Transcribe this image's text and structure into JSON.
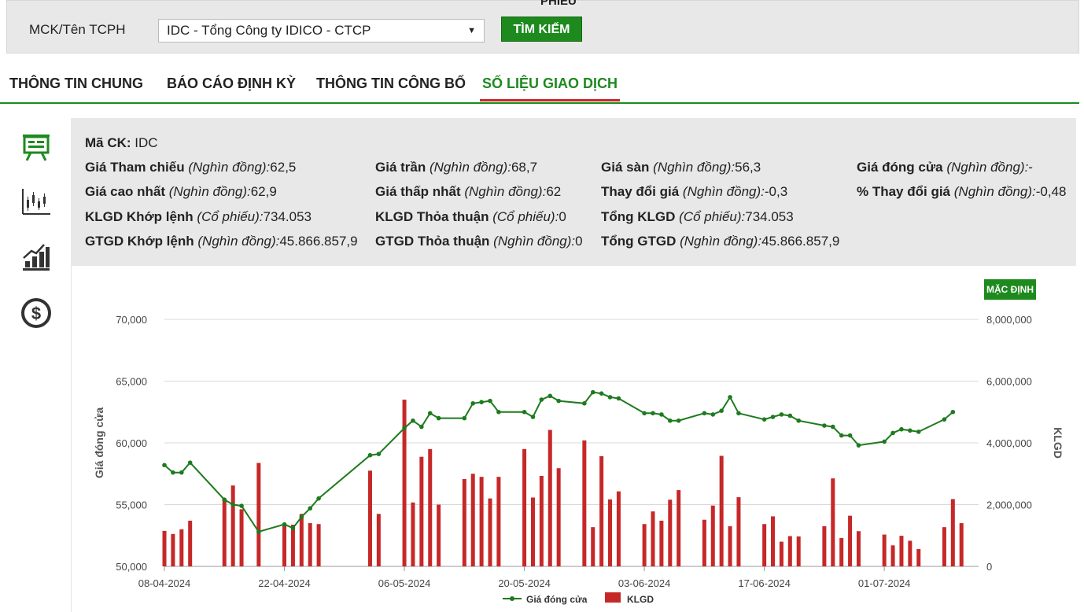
{
  "search": {
    "partial_title": "PHIẾU",
    "label": "MCK/Tên TCPH",
    "selected": "IDC - Tổng Công ty IDICO - CTCP",
    "button": "TÌM KIẾM"
  },
  "tabs": [
    {
      "label": "THÔNG TIN CHUNG"
    },
    {
      "label": "BÁO CÁO ĐỊNH KỲ"
    },
    {
      "label": "THÔNG TIN CÔNG BỐ"
    },
    {
      "label": "SỐ LIỆU GIAO DỊCH"
    }
  ],
  "side_icons": [
    "presentation-chart-icon",
    "candlestick-chart-icon",
    "growth-chart-icon",
    "dollar-coin-icon"
  ],
  "info": {
    "ma_ck": {
      "label": "Mã CK:",
      "value": "IDC"
    },
    "items": [
      {
        "label": "Giá Tham chiếu",
        "unit": "(Nghìn đồng):",
        "value": "62,5"
      },
      {
        "label": "Giá trần",
        "unit": "(Nghìn đồng):",
        "value": "68,7"
      },
      {
        "label": "Giá sàn",
        "unit": "(Nghìn đồng):",
        "value": "56,3"
      },
      {
        "label": "Giá đóng cửa",
        "unit": "(Nghìn đồng):",
        "value": "-"
      },
      {
        "label": "Giá cao nhất",
        "unit": "(Nghìn đồng):",
        "value": "62,9"
      },
      {
        "label": "Giá thấp nhất",
        "unit": "(Nghìn đồng):",
        "value": "62"
      },
      {
        "label": "Thay đổi giá",
        "unit": "(Nghìn đồng):",
        "value": "-0,3"
      },
      {
        "label": "% Thay đổi giá",
        "unit": "(Nghìn đồng):",
        "value": "-0,48"
      },
      {
        "label": "KLGD Khớp lệnh",
        "unit": "(Cổ phiếu):",
        "value": "734.053"
      },
      {
        "label": "KLGD Thỏa thuận",
        "unit": "(Cổ phiếu):",
        "value": "0"
      },
      {
        "label": "Tổng KLGD",
        "unit": "(Cổ phiếu):",
        "value": "734.053"
      },
      {
        "label": "GTGD Khớp lệnh",
        "unit": "(Nghìn đồng):",
        "value": "45.866.857,9"
      },
      {
        "label": "GTGD Thỏa thuận",
        "unit": "(Nghìn đồng):",
        "value": "0"
      },
      {
        "label": "Tổng GTGD",
        "unit": "(Nghìn đồng):",
        "value": "45.866.857,9"
      }
    ]
  },
  "chart": {
    "default_button": "MẶC ĐỊNH"
  },
  "colors": {
    "accent": "#1e8a1e",
    "bar": "#c62828",
    "line": "#1e7a1e",
    "tab_underline": "#c62828"
  },
  "chart_data": {
    "type": "bar+line",
    "xlabel": "",
    "ylabel": "Giá đóng cửa",
    "y2label": "KLGD",
    "ylim": [
      50000,
      70000
    ],
    "y2lim": [
      0,
      8000000
    ],
    "yticks": [
      "50,000",
      "55,000",
      "60,000",
      "65,000",
      "70,000"
    ],
    "y2ticks": [
      "0",
      "2,000,000",
      "4,000,000",
      "6,000,000",
      "8,000,000"
    ],
    "xticks": [
      "08-04-2024",
      "22-04-2024",
      "06-05-2024",
      "20-05-2024",
      "03-06-2024",
      "17-06-2024",
      "01-07-2024"
    ],
    "x_start": "2024-04-08",
    "x_end": "2024-07-12",
    "series": [
      {
        "name": "Giá đóng cửa",
        "type": "line",
        "points": [
          [
            "2024-04-08",
            58200
          ],
          [
            "2024-04-09",
            57600
          ],
          [
            "2024-04-10",
            57600
          ],
          [
            "2024-04-11",
            58400
          ],
          [
            "2024-04-15",
            55400
          ],
          [
            "2024-04-16",
            55000
          ],
          [
            "2024-04-17",
            54900
          ],
          [
            "2024-04-19",
            52800
          ],
          [
            "2024-04-22",
            53400
          ],
          [
            "2024-04-23",
            53100
          ],
          [
            "2024-04-24",
            54000
          ],
          [
            "2024-04-25",
            54700
          ],
          [
            "2024-04-26",
            55500
          ],
          [
            "2024-05-02",
            59000
          ],
          [
            "2024-05-03",
            59100
          ],
          [
            "2024-05-06",
            61200
          ],
          [
            "2024-05-07",
            61800
          ],
          [
            "2024-05-08",
            61300
          ],
          [
            "2024-05-09",
            62400
          ],
          [
            "2024-05-10",
            62000
          ],
          [
            "2024-05-13",
            62000
          ],
          [
            "2024-05-14",
            63200
          ],
          [
            "2024-05-15",
            63300
          ],
          [
            "2024-05-16",
            63400
          ],
          [
            "2024-05-17",
            62500
          ],
          [
            "2024-05-20",
            62500
          ],
          [
            "2024-05-21",
            62100
          ],
          [
            "2024-05-22",
            63500
          ],
          [
            "2024-05-23",
            63800
          ],
          [
            "2024-05-24",
            63400
          ],
          [
            "2024-05-27",
            63200
          ],
          [
            "2024-05-28",
            64100
          ],
          [
            "2024-05-29",
            64000
          ],
          [
            "2024-05-30",
            63700
          ],
          [
            "2024-05-31",
            63600
          ],
          [
            "2024-06-03",
            62400
          ],
          [
            "2024-06-04",
            62400
          ],
          [
            "2024-06-05",
            62300
          ],
          [
            "2024-06-06",
            61800
          ],
          [
            "2024-06-07",
            61800
          ],
          [
            "2024-06-10",
            62400
          ],
          [
            "2024-06-11",
            62300
          ],
          [
            "2024-06-12",
            62600
          ],
          [
            "2024-06-13",
            63700
          ],
          [
            "2024-06-14",
            62400
          ],
          [
            "2024-06-17",
            61900
          ],
          [
            "2024-06-18",
            62100
          ],
          [
            "2024-06-19",
            62300
          ],
          [
            "2024-06-20",
            62200
          ],
          [
            "2024-06-21",
            61800
          ],
          [
            "2024-06-24",
            61400
          ],
          [
            "2024-06-25",
            61300
          ],
          [
            "2024-06-26",
            60600
          ],
          [
            "2024-06-27",
            60600
          ],
          [
            "2024-06-28",
            59800
          ],
          [
            "2024-07-01",
            60100
          ],
          [
            "2024-07-02",
            60800
          ],
          [
            "2024-07-03",
            61100
          ],
          [
            "2024-07-04",
            61000
          ],
          [
            "2024-07-05",
            60900
          ],
          [
            "2024-07-08",
            61900
          ],
          [
            "2024-07-09",
            62500
          ]
        ]
      },
      {
        "name": "KLGD",
        "type": "bar",
        "points": [
          [
            "2024-04-08",
            1150000
          ],
          [
            "2024-04-09",
            1050000
          ],
          [
            "2024-04-10",
            1200000
          ],
          [
            "2024-04-11",
            1480000
          ],
          [
            "2024-04-15",
            2200000
          ],
          [
            "2024-04-16",
            2620000
          ],
          [
            "2024-04-17",
            1850000
          ],
          [
            "2024-04-19",
            3350000
          ],
          [
            "2024-04-22",
            1380000
          ],
          [
            "2024-04-23",
            1350000
          ],
          [
            "2024-04-24",
            1700000
          ],
          [
            "2024-04-25",
            1400000
          ],
          [
            "2024-04-26",
            1370000
          ],
          [
            "2024-05-02",
            3100000
          ],
          [
            "2024-05-03",
            1700000
          ],
          [
            "2024-05-06",
            5400000
          ],
          [
            "2024-05-07",
            2070000
          ],
          [
            "2024-05-08",
            3550000
          ],
          [
            "2024-05-09",
            3800000
          ],
          [
            "2024-05-10",
            2000000
          ],
          [
            "2024-05-13",
            2830000
          ],
          [
            "2024-05-14",
            3000000
          ],
          [
            "2024-05-15",
            2900000
          ],
          [
            "2024-05-16",
            2200000
          ],
          [
            "2024-05-17",
            2900000
          ],
          [
            "2024-05-20",
            3800000
          ],
          [
            "2024-05-21",
            2230000
          ],
          [
            "2024-05-22",
            2930000
          ],
          [
            "2024-05-23",
            4420000
          ],
          [
            "2024-05-24",
            3180000
          ],
          [
            "2024-05-27",
            4080000
          ],
          [
            "2024-05-28",
            1270000
          ],
          [
            "2024-05-29",
            3570000
          ],
          [
            "2024-05-30",
            2170000
          ],
          [
            "2024-05-31",
            2430000
          ],
          [
            "2024-06-03",
            1370000
          ],
          [
            "2024-06-04",
            1780000
          ],
          [
            "2024-06-05",
            1480000
          ],
          [
            "2024-06-06",
            2160000
          ],
          [
            "2024-06-07",
            2470000
          ],
          [
            "2024-06-10",
            1510000
          ],
          [
            "2024-06-11",
            1970000
          ],
          [
            "2024-06-12",
            3580000
          ],
          [
            "2024-06-13",
            1300000
          ],
          [
            "2024-06-14",
            2240000
          ],
          [
            "2024-06-17",
            1370000
          ],
          [
            "2024-06-18",
            1620000
          ],
          [
            "2024-06-19",
            800000
          ],
          [
            "2024-06-20",
            980000
          ],
          [
            "2024-06-21",
            970000
          ],
          [
            "2024-06-24",
            1300000
          ],
          [
            "2024-06-25",
            2850000
          ],
          [
            "2024-06-26",
            920000
          ],
          [
            "2024-06-27",
            1640000
          ],
          [
            "2024-06-28",
            1140000
          ],
          [
            "2024-07-01",
            1030000
          ],
          [
            "2024-07-02",
            680000
          ],
          [
            "2024-07-03",
            990000
          ],
          [
            "2024-07-04",
            830000
          ],
          [
            "2024-07-05",
            560000
          ],
          [
            "2024-07-08",
            1270000
          ],
          [
            "2024-07-09",
            2180000
          ],
          [
            "2024-07-10",
            1400000
          ]
        ]
      }
    ],
    "legend": [
      {
        "name": "Giá đóng cửa",
        "color": "#1e7a1e"
      },
      {
        "name": "KLGD",
        "color": "#c62828"
      }
    ],
    "legend_position": "bottom",
    "grid": true
  }
}
